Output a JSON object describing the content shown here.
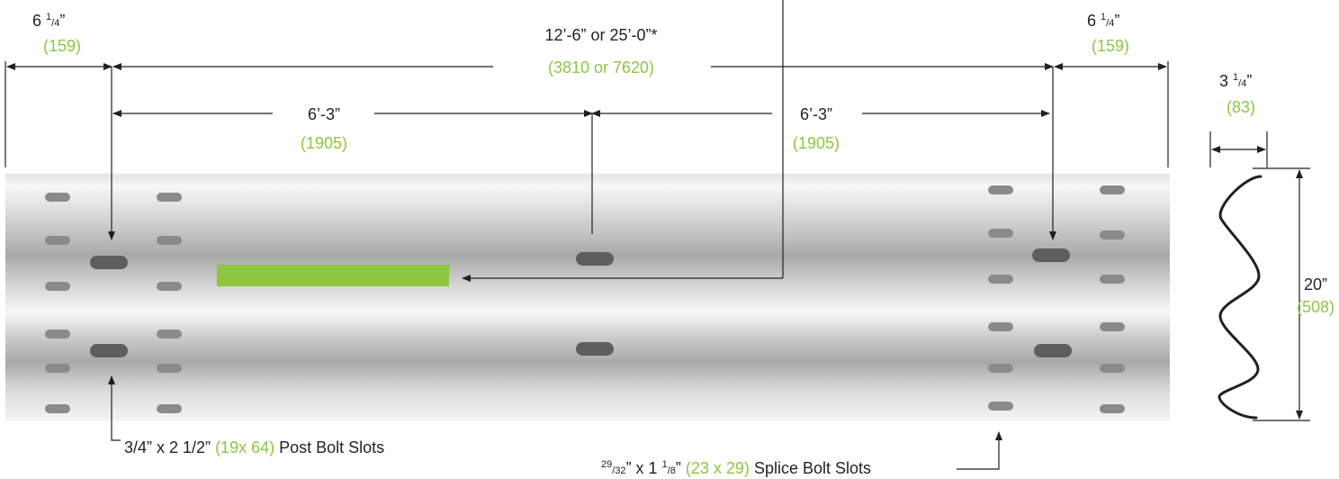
{
  "colors": {
    "dimension_text": "#231f20",
    "metric_text": "#8dc63f",
    "label_patch": "#8dc63f",
    "rail_light": "#f6f6f6",
    "rail_dark": "#a9a9a9",
    "slot": "#7f7f7f",
    "slot_dark": "#5d5d5d"
  },
  "dimensions": {
    "left_end": {
      "whole": "6 ",
      "frac_num": "1",
      "frac_den": "4",
      "close": "”",
      "metric": "(159)"
    },
    "overall": {
      "imperial": "12’-6” or 25’-0”*",
      "metric": "(3810 or 7620)"
    },
    "right_end": {
      "whole": "6 ",
      "frac_num": "1",
      "frac_den": "4",
      "close": "”",
      "metric": "(159)"
    },
    "left_half": {
      "imperial": "6’-3”",
      "metric": "(1905)"
    },
    "right_half": {
      "imperial": "6’-3”",
      "metric": "(1905)"
    },
    "depth": {
      "whole": "3 ",
      "frac_num": "1",
      "frac_den": "4",
      "close": "”",
      "metric": "(83)"
    },
    "height": {
      "imperial": "20”",
      "metric": "(508)"
    }
  },
  "callouts": {
    "post_bolt": {
      "imperial": "3/4” x 2 1/2” ",
      "metric": "(19x 64)",
      "label": " Post Bolt Slots"
    },
    "splice_bolt": {
      "frac1_num": "29",
      "frac1_sep": "/",
      "frac1_den": "32",
      "mid": "” x 1 ",
      "frac2_num": "1",
      "frac2_den": "8",
      "close": "” ",
      "metric": "(23 x 29)",
      "label": " Splice Bolt Slots"
    }
  }
}
